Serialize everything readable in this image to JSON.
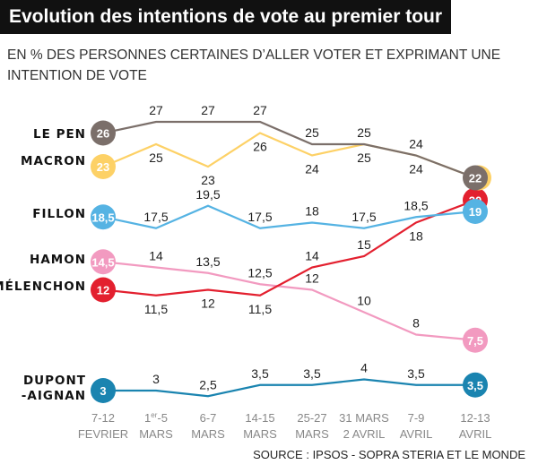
{
  "chart_data": {
    "type": "line",
    "title": "Evolution des intentions de vote au premier tour",
    "subtitle": "EN % DES PERSONNES CERTAINES D’ALLER VOTER ET EXPRIMANT UNE INTENTION DE VOTE",
    "source": "SOURCE : IPSOS - SOPRA STERIA ET LE MONDE",
    "categories": [
      [
        "7-12",
        "FEVRIER"
      ],
      [
        "1er-5",
        "MARS"
      ],
      [
        "6-7",
        "MARS"
      ],
      [
        "14-15",
        "MARS"
      ],
      [
        "25-27",
        "MARS"
      ],
      [
        "31 MARS",
        "2 AVRIL"
      ],
      [
        "7-9",
        "AVRIL"
      ],
      [
        "12-13",
        "AVRIL"
      ]
    ],
    "grid": false,
    "series": [
      {
        "name": "LE PEN",
        "color": "#7b6f6a",
        "values": [
          26,
          27,
          27,
          27,
          25,
          25,
          24,
          22
        ],
        "labels": [
          "26",
          "27",
          "27",
          "27",
          "25",
          "25",
          "24",
          "22"
        ]
      },
      {
        "name": "MACRON",
        "color": "#fdd166",
        "values": [
          23,
          25,
          23,
          26,
          24,
          25,
          24,
          22
        ],
        "labels": [
          "23",
          "25",
          "23",
          "26",
          "24",
          "25",
          "24",
          "22"
        ]
      },
      {
        "name": "FILLON",
        "color": "#55b3e3",
        "values": [
          18.5,
          17.5,
          19.5,
          17.5,
          18,
          17.5,
          18.5,
          19
        ],
        "labels": [
          "18,5",
          "17,5",
          "19,5",
          "17,5",
          "18",
          "17,5",
          "18,5",
          "19"
        ]
      },
      {
        "name": "HAMON",
        "color": "#f29ac0",
        "values": [
          14.5,
          14,
          13.5,
          12.5,
          12,
          10,
          8,
          7.5
        ],
        "labels": [
          "14,5",
          "14",
          "13,5",
          "12,5",
          "12",
          "10",
          "8",
          "7,5"
        ]
      },
      {
        "name": "MÉLENCHON",
        "color": "#e3202f",
        "values": [
          12,
          11.5,
          12,
          11.5,
          14,
          15,
          18,
          20
        ],
        "labels": [
          "12",
          "11,5",
          "12",
          "11,5",
          "14",
          "15",
          "18",
          "20"
        ]
      },
      {
        "name": "DUPONT\n-AIGNAN",
        "color": "#1a84b0",
        "values": [
          3,
          3,
          2.5,
          3.5,
          3.5,
          4,
          3.5,
          3.5
        ],
        "labels": [
          "3",
          "3",
          "2,5",
          "3,5",
          "3,5",
          "4",
          "3,5",
          "3,5"
        ]
      }
    ]
  }
}
